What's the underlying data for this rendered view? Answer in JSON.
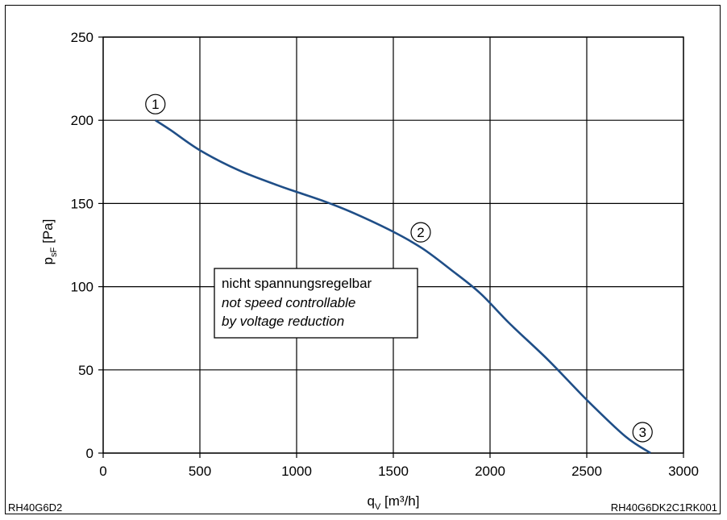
{
  "chart_data": {
    "type": "line",
    "xlabel": {
      "base": "q",
      "sub": "V",
      "unit": " [m³/h]"
    },
    "ylabel": {
      "base": "p",
      "sub": "sF",
      "unit": " [Pa]"
    },
    "xlim": [
      0,
      3000
    ],
    "ylim": [
      0,
      250
    ],
    "x_ticks": [
      0,
      500,
      1000,
      1500,
      2000,
      2500,
      3000
    ],
    "y_ticks": [
      0,
      50,
      100,
      150,
      200,
      250
    ],
    "grid": true,
    "series": [
      {
        "color": "#1f4e87",
        "points": [
          [
            270,
            200
          ],
          [
            350,
            194
          ],
          [
            500,
            182
          ],
          [
            700,
            170
          ],
          [
            900,
            161
          ],
          [
            1000,
            157
          ],
          [
            1150,
            151
          ],
          [
            1300,
            144
          ],
          [
            1500,
            133
          ],
          [
            1650,
            123
          ],
          [
            1800,
            110
          ],
          [
            1950,
            96
          ],
          [
            2100,
            78
          ],
          [
            2300,
            56
          ],
          [
            2500,
            32
          ],
          [
            2700,
            10
          ],
          [
            2830,
            0
          ]
        ]
      }
    ],
    "operating_points": [
      {
        "label": "1",
        "x": 270,
        "y": 200
      },
      {
        "label": "2",
        "x": 1650,
        "y": 123
      },
      {
        "label": "3",
        "x": 2830,
        "y": 0
      }
    ],
    "annotation": {
      "lines": [
        "nicht spannungsregelbar",
        "not speed controllable",
        "by voltage reduction"
      ]
    }
  },
  "footer": {
    "left": "RH40G6D2",
    "right": "RH40G6DK2C1RK001"
  }
}
